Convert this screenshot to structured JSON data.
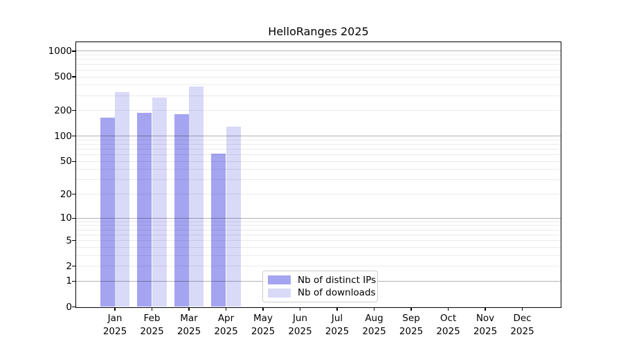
{
  "chart_data": {
    "type": "bar",
    "title": "HelloRanges 2025",
    "categories": [
      "Jan",
      "Feb",
      "Mar",
      "Apr",
      "May",
      "Jun",
      "Jul",
      "Aug",
      "Sep",
      "Oct",
      "Nov",
      "Dec"
    ],
    "category_year": "2025",
    "series": [
      {
        "name": "Nb of distinct IPs",
        "color": "#a4a4f0",
        "values": [
          165,
          190,
          180,
          62,
          0,
          0,
          0,
          0,
          0,
          0,
          0,
          0
        ]
      },
      {
        "name": "Nb of downloads",
        "color": "#d9d9f8",
        "values": [
          330,
          285,
          385,
          130,
          0,
          0,
          0,
          0,
          0,
          0,
          0,
          0
        ]
      }
    ],
    "y_axis": {
      "scale": "log1p",
      "tick_labels": [
        0,
        1,
        2,
        5,
        10,
        20,
        50,
        100,
        200,
        500,
        1000
      ],
      "major_gridlines": [
        1,
        10,
        100,
        1000
      ],
      "minor_gridlines": [
        2,
        3,
        4,
        5,
        6,
        7,
        8,
        9,
        20,
        30,
        40,
        50,
        60,
        70,
        80,
        90,
        200,
        300,
        400,
        500,
        600,
        700,
        800,
        900
      ],
      "top_value": 1275
    },
    "legend": {
      "position": "lower-center",
      "entries": [
        "Nb of distinct IPs",
        "Nb of downloads"
      ]
    },
    "grid": "on",
    "xlabel": "",
    "ylabel": ""
  }
}
